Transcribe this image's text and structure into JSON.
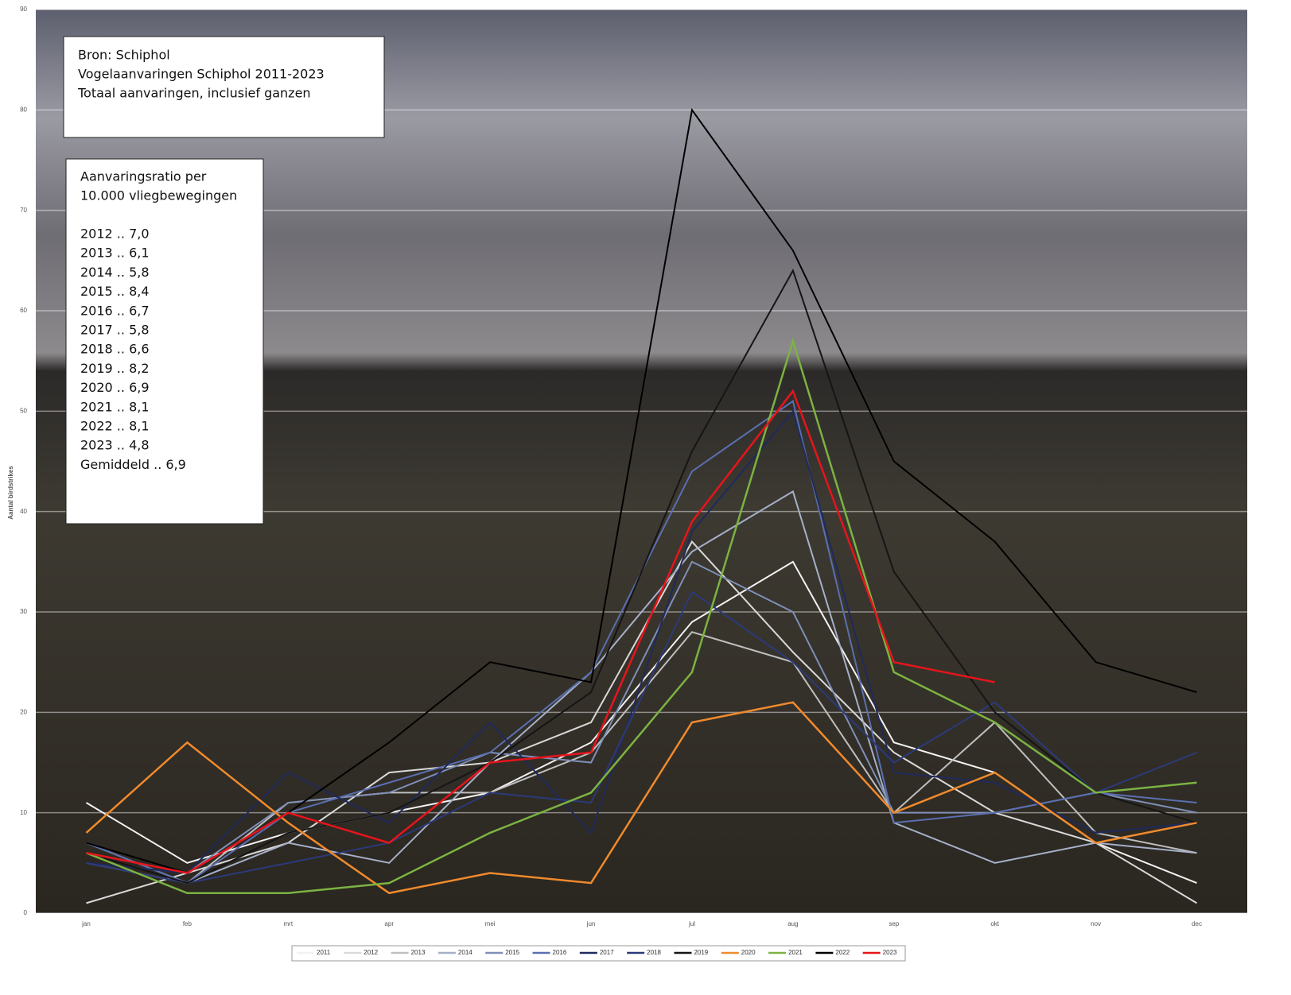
{
  "chart_data": {
    "type": "line",
    "y_label": "Aantal birdstrikes",
    "categories": [
      "jan",
      "feb",
      "mrt",
      "apr",
      "mei",
      "jun",
      "jul",
      "aug",
      "sep",
      "okt",
      "nov",
      "dec"
    ],
    "ylim": [
      0,
      90
    ],
    "yticks": [
      0,
      10,
      20,
      30,
      40,
      50,
      60,
      70,
      80,
      90
    ],
    "grid": true,
    "legend": "bottom",
    "series": [
      {
        "name": "2011",
        "color": "#f2f2f2",
        "values": [
          11,
          5,
          8,
          10,
          12,
          17,
          29,
          35,
          17,
          14,
          7,
          3
        ]
      },
      {
        "name": "2012",
        "color": "#d9d9d9",
        "values": [
          1,
          4,
          7,
          14,
          15,
          19,
          37,
          26,
          16,
          10,
          7,
          1
        ]
      },
      {
        "name": "2013",
        "color": "#bfbfbf",
        "values": [
          7,
          3,
          11,
          12,
          12,
          16,
          28,
          25,
          10,
          19,
          8,
          6
        ]
      },
      {
        "name": "2014",
        "color": "#a6b0c8",
        "values": [
          5,
          3,
          7,
          5,
          15,
          24,
          36,
          42,
          9,
          5,
          7,
          6
        ]
      },
      {
        "name": "2015",
        "color": "#7f8fb8",
        "values": [
          6,
          4,
          11,
          12,
          16,
          15,
          35,
          30,
          10,
          10,
          12,
          10
        ]
      },
      {
        "name": "2016",
        "color": "#5a6fb0",
        "values": [
          7,
          3,
          10,
          13,
          16,
          24,
          44,
          51,
          9,
          10,
          12,
          11
        ]
      },
      {
        "name": "2017",
        "color": "#1f2a5c",
        "values": [
          5,
          4,
          14,
          9,
          19,
          8,
          38,
          50,
          14,
          13,
          8,
          9
        ]
      },
      {
        "name": "2018",
        "color": "#2b3a7a",
        "values": [
          5,
          3,
          5,
          7,
          12,
          11,
          32,
          25,
          15,
          21,
          12,
          16
        ]
      },
      {
        "name": "2019",
        "color": "#151515",
        "values": [
          6,
          3,
          8,
          10,
          15,
          22,
          46,
          64,
          34,
          20,
          12,
          9
        ]
      },
      {
        "name": "2020",
        "color": "#f08a2c",
        "values": [
          8,
          17,
          9,
          2,
          4,
          3,
          19,
          21,
          10,
          14,
          7,
          9
        ]
      },
      {
        "name": "2021",
        "color": "#7cb342",
        "values": [
          6,
          2,
          2,
          3,
          8,
          12,
          24,
          57,
          24,
          19,
          12,
          13
        ]
      },
      {
        "name": "2022",
        "color": "#000000",
        "values": [
          7,
          4,
          10,
          17,
          25,
          23,
          80,
          66,
          45,
          37,
          25,
          22
        ]
      },
      {
        "name": "2023",
        "color": "#e8141c",
        "values": [
          6,
          4,
          10,
          7,
          15,
          16,
          39,
          52,
          25,
          23,
          null,
          null
        ]
      }
    ],
    "source_box": [
      "Bron: Schiphol",
      "Vogelaanvaringen Schiphol 2011-2023",
      "Totaal aanvaringen, inclusief ganzen"
    ],
    "ratio_box": {
      "title": [
        "Aanvaringsratio per",
        "10.000 vliegbewegingen"
      ],
      "rows": [
        "2012 .. 7,0",
        "2013 .. 6,1",
        "2014 ..  5,8",
        "2015 .. 8,4",
        "2016 .. 6,7",
        "2017 .. 5,8",
        "2018 .. 6,6",
        "2019 .. 8,2",
        "2020 .. 6,9",
        "2021 .. 8,1",
        "2022 .. 8,1",
        "2023 .. 4,8",
        "Gemiddeld .. 6,9"
      ]
    }
  }
}
